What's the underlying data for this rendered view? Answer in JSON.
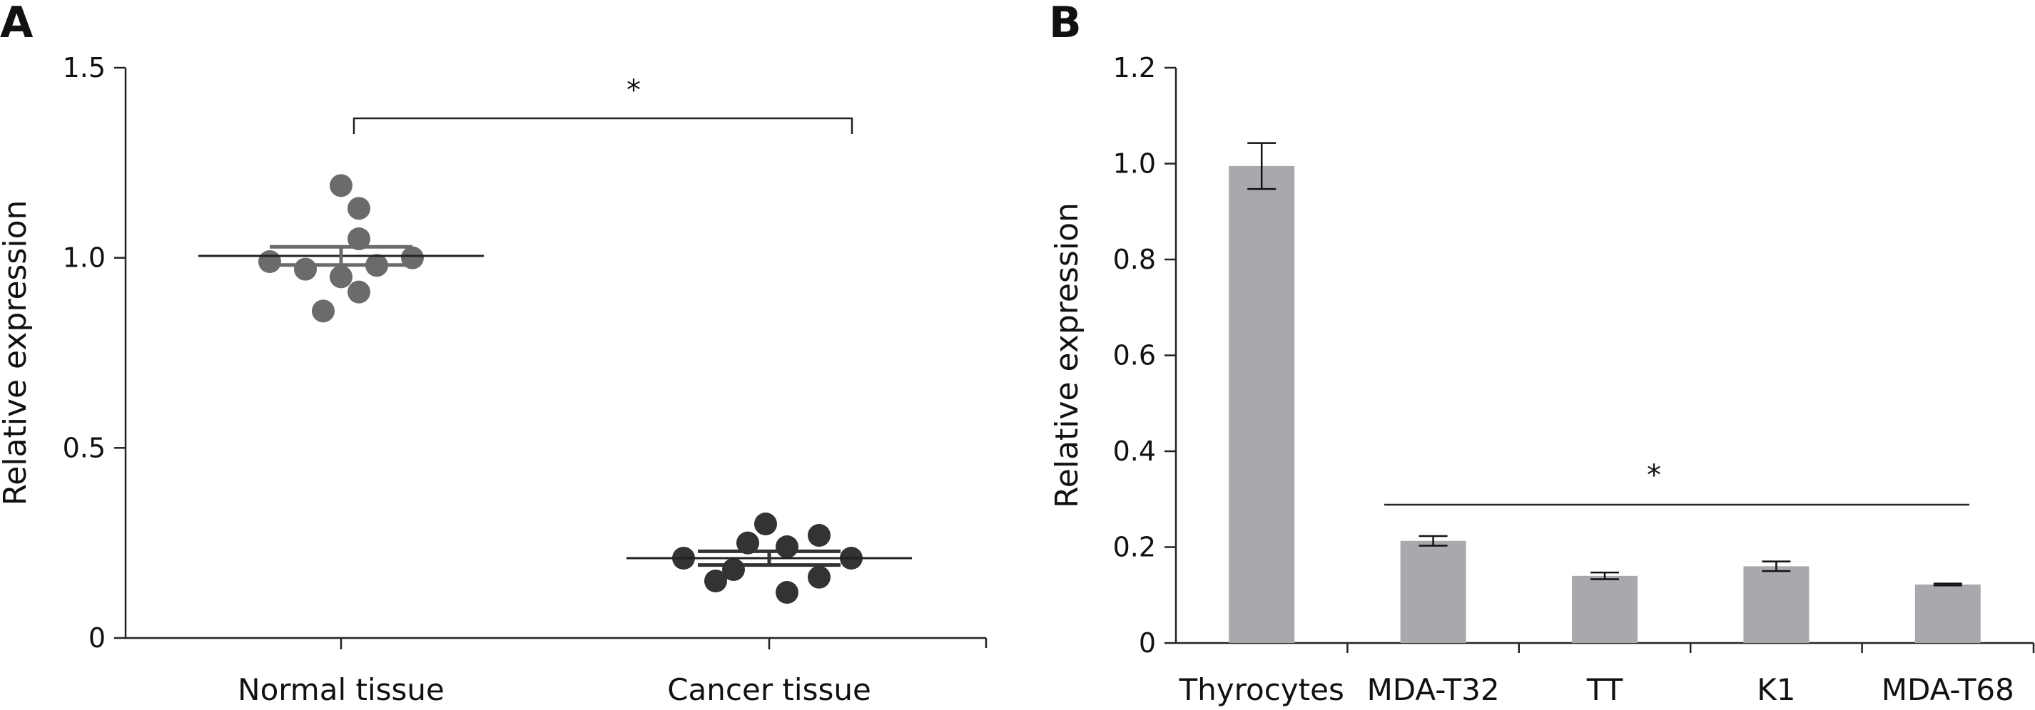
{
  "chart_data": [
    {
      "panel_label": "A",
      "type": "scatter",
      "ylabel": "Relative expression",
      "ylim": [
        0,
        1.5
      ],
      "yticks": [
        "0",
        "0.5",
        "1.0",
        "1.5"
      ],
      "categories": [
        "Normal tissue",
        "Cancer tissue"
      ],
      "series": [
        {
          "values": [
            1.19,
            1.13,
            1.05,
            0.99,
            0.97,
            0.95,
            0.98,
            1.0,
            0.91,
            0.86
          ],
          "mean": 1.005,
          "sem": 0.024,
          "color": "#6b6b6b"
        },
        {
          "values": [
            0.3,
            0.25,
            0.24,
            0.27,
            0.21,
            0.21,
            0.16,
            0.15,
            0.18,
            0.12
          ],
          "mean": 0.21,
          "sem": 0.018,
          "color": "#333333"
        }
      ],
      "significance": "*"
    },
    {
      "panel_label": "B",
      "type": "bar",
      "ylabel": "Relative expression",
      "ylim": [
        0,
        1.2
      ],
      "yticks": [
        "0",
        "0.2",
        "0.4",
        "0.6",
        "0.8",
        "1.0",
        "1.2"
      ],
      "categories": [
        "Thyrocytes",
        "MDA-T32",
        "TT",
        "K1",
        "MDA-T68"
      ],
      "values": [
        0.995,
        0.213,
        0.14,
        0.16,
        0.122
      ],
      "errors": [
        0.048,
        0.01,
        0.007,
        0.01,
        0.002
      ],
      "bar_color": "#a7a9ac",
      "significance": "*"
    }
  ]
}
